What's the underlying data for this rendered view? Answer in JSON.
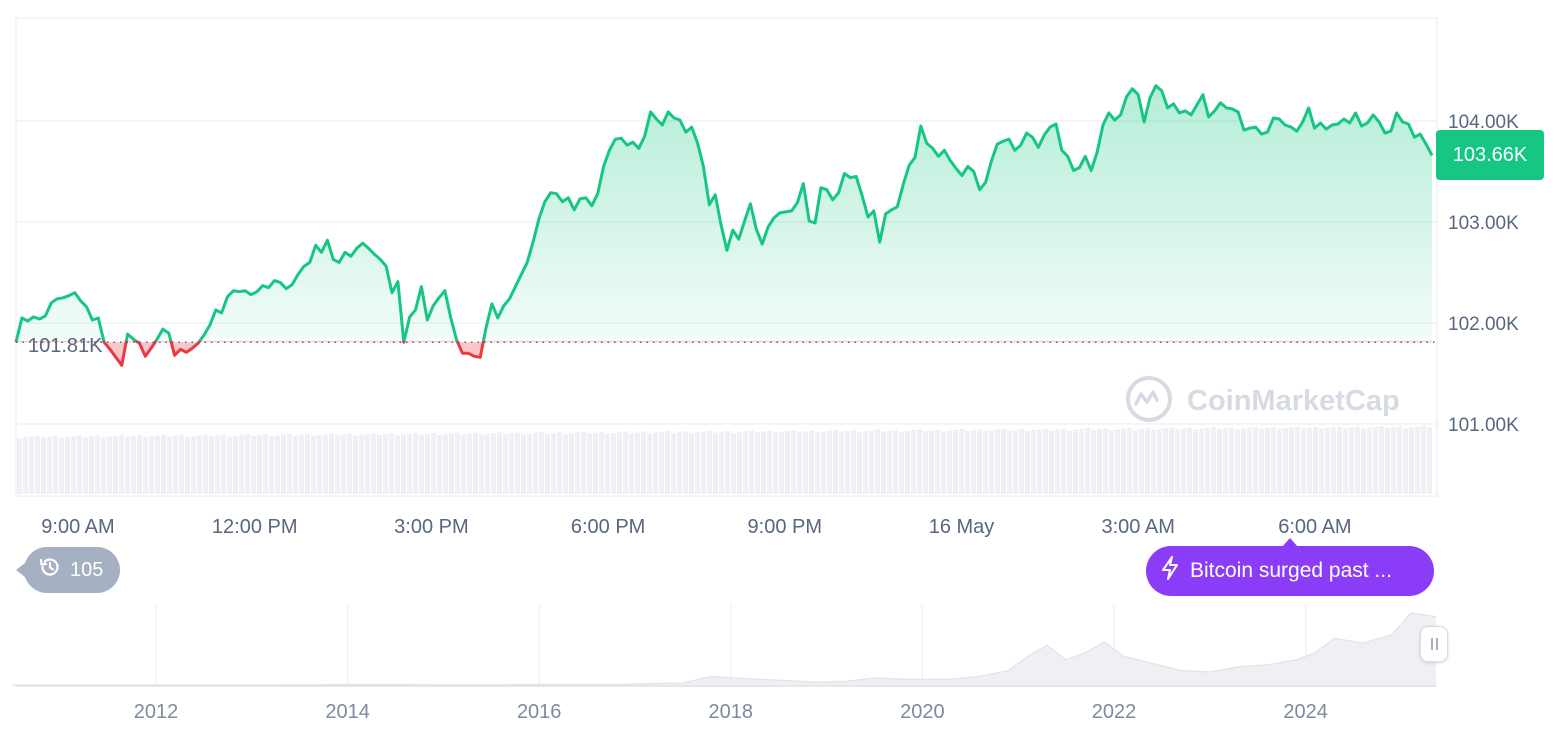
{
  "chart_data": [
    {
      "type": "area",
      "series": [
        {
          "values": [
            101.81,
            102.05,
            102.02,
            102.06,
            102.04,
            102.07,
            102.2,
            102.24,
            102.25,
            102.27,
            102.3,
            102.22,
            102.16,
            102.03,
            102.05,
            101.81,
            101.74,
            101.66,
            101.58,
            101.89,
            101.84,
            101.8,
            101.67,
            101.75,
            101.84,
            101.94,
            101.9,
            101.68,
            101.74,
            101.71,
            101.75,
            101.8,
            101.88,
            101.98,
            102.13,
            102.1,
            102.26,
            102.32,
            102.31,
            102.32,
            102.28,
            102.31,
            102.37,
            102.35,
            102.42,
            102.4,
            102.34,
            102.38,
            102.48,
            102.56,
            102.6,
            102.77,
            102.7,
            102.82,
            102.63,
            102.6,
            102.7,
            102.66,
            102.74,
            102.79,
            102.74,
            102.68,
            102.63,
            102.56,
            102.3,
            102.41,
            101.81,
            102.06,
            102.13,
            102.36,
            102.03,
            102.17,
            102.25,
            102.32,
            102.05,
            101.83,
            101.7,
            101.7,
            101.67,
            101.66,
            101.95,
            102.19,
            102.05,
            102.17,
            102.24,
            102.36,
            102.48,
            102.6,
            102.8,
            103.03,
            103.2,
            103.29,
            103.28,
            103.2,
            103.24,
            103.12,
            103.23,
            103.24,
            103.16,
            103.28,
            103.55,
            103.71,
            103.82,
            103.83,
            103.76,
            103.79,
            103.73,
            103.85,
            104.09,
            104.02,
            103.96,
            104.09,
            104.03,
            104.01,
            103.89,
            103.94,
            103.78,
            103.55,
            103.17,
            103.27,
            102.97,
            102.72,
            102.92,
            102.83,
            103.01,
            103.18,
            102.93,
            102.78,
            102.95,
            103.04,
            103.09,
            103.1,
            103.11,
            103.19,
            103.38,
            103.01,
            102.99,
            103.34,
            103.32,
            103.22,
            103.29,
            103.48,
            103.44,
            103.45,
            103.26,
            103.05,
            103.11,
            102.8,
            103.08,
            103.12,
            103.15,
            103.37,
            103.56,
            103.64,
            103.95,
            103.78,
            103.73,
            103.65,
            103.71,
            103.61,
            103.53,
            103.46,
            103.55,
            103.5,
            103.32,
            103.39,
            103.6,
            103.77,
            103.8,
            103.82,
            103.71,
            103.76,
            103.88,
            103.84,
            103.74,
            103.86,
            103.94,
            103.97,
            103.71,
            103.65,
            103.51,
            103.54,
            103.65,
            103.51,
            103.69,
            103.96,
            104.08,
            104.01,
            104.06,
            104.24,
            104.32,
            104.26,
            103.99,
            104.23,
            104.35,
            104.3,
            104.13,
            104.17,
            104.08,
            104.1,
            104.06,
            104.16,
            104.26,
            104.04,
            104.1,
            104.18,
            104.13,
            104.12,
            104.09,
            103.91,
            103.93,
            103.94,
            103.87,
            103.89,
            104.03,
            104.02,
            103.96,
            103.94,
            103.9,
            103.99,
            104.13,
            103.93,
            103.98,
            103.92,
            103.96,
            103.97,
            104.02,
            103.98,
            104.08,
            103.95,
            103.98,
            104.06,
            103.99,
            103.88,
            103.9,
            104.08,
            103.99,
            103.97,
            103.84,
            103.87,
            103.77,
            103.66
          ]
        }
      ],
      "ylim": [
        100.5,
        105.0
      ],
      "yticks": [
        "104.00K",
        "103.00K",
        "102.00K",
        "101.00K"
      ],
      "xticks": [
        "9:00 AM",
        "12:00 PM",
        "3:00 PM",
        "6:00 PM",
        "9:00 PM",
        "16 May",
        "3:00 AM",
        "6:00 AM"
      ],
      "baseline": {
        "value": 101.81,
        "label": "101.81K"
      },
      "current_price": "103.66K",
      "up_color": "#16c784",
      "down_color": "#ea3943",
      "grid": true
    },
    {
      "type": "area",
      "series": [
        {
          "x": [
            2010.5,
            2011,
            2011.5,
            2012,
            2012.5,
            2013,
            2013.5,
            2014,
            2014.5,
            2015,
            2015.5,
            2016,
            2016.5,
            2017,
            2017.5,
            2017.8,
            2018,
            2018.3,
            2018.6,
            2018.9,
            2019.2,
            2019.5,
            2019.8,
            2020,
            2020.3,
            2020.6,
            2020.9,
            2021.1,
            2021.3,
            2021.5,
            2021.7,
            2021.9,
            2022.1,
            2022.4,
            2022.7,
            2023,
            2023.3,
            2023.6,
            2023.9,
            2024.1,
            2024.3,
            2024.6,
            2024.9,
            2025.1,
            2025.4
          ],
          "values": [
            0,
            0,
            0,
            0,
            0,
            0,
            0.1,
            0.5,
            0.5,
            0.3,
            0.3,
            0.5,
            0.8,
            1.2,
            3,
            12,
            10,
            8,
            6,
            4,
            5,
            10,
            8,
            8,
            8,
            12,
            20,
            40,
            55,
            35,
            45,
            60,
            40,
            30,
            20,
            18,
            25,
            28,
            35,
            45,
            65,
            58,
            70,
            100,
            95
          ]
        }
      ],
      "xticks": [
        "2012",
        "2014",
        "2016",
        "2018",
        "2020",
        "2022",
        "2024"
      ]
    }
  ],
  "history_count": "105",
  "news_label": "Bitcoin surged past ...",
  "watermark": "CoinMarketCap",
  "colors": {
    "green": "#16c784",
    "red": "#ea3943",
    "purple": "#8b3cf7",
    "badge_grey": "#a6b0c3",
    "grid": "#eff2f5"
  }
}
